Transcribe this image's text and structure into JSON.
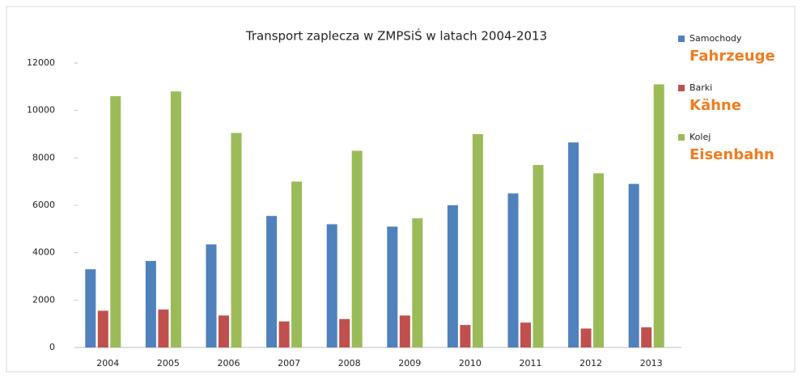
{
  "chart_data": {
    "type": "bar",
    "title": "Transport zaplecza w ZMPSiŚ w latach 2004-2013",
    "categories": [
      "2004",
      "2005",
      "2006",
      "2007",
      "2008",
      "2009",
      "2010",
      "2011",
      "2012",
      "2013"
    ],
    "series": [
      {
        "name": "Samochody",
        "color": "#4f81bd",
        "values": [
          3300,
          3650,
          4350,
          5550,
          5200,
          5100,
          6000,
          6500,
          8650,
          6900
        ]
      },
      {
        "name": "Barki",
        "color": "#c0504d",
        "values": [
          1550,
          1600,
          1350,
          1100,
          1200,
          1350,
          950,
          1050,
          800,
          850
        ]
      },
      {
        "name": "Kolej",
        "color": "#9bbb59",
        "values": [
          10600,
          10800,
          9050,
          7000,
          8300,
          5450,
          9000,
          7700,
          7350,
          11100
        ]
      }
    ],
    "annotations": [
      "Fahrzeuge",
      "Kähne",
      "Eisenbahn"
    ],
    "annotation_color": "#f07c1e",
    "ylim": [
      0,
      12000
    ],
    "yticks": [
      0,
      2000,
      4000,
      6000,
      8000,
      10000,
      12000
    ],
    "grid": false,
    "legend": "right"
  }
}
